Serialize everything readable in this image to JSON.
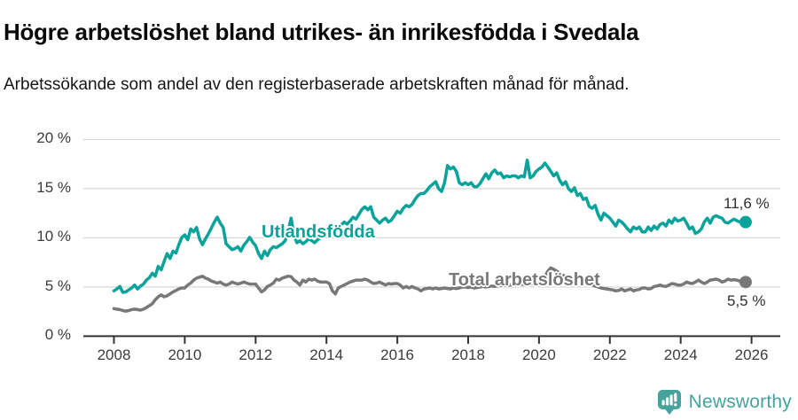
{
  "chart_data": {
    "type": "line",
    "title": "Högre arbetslöshet bland utrikes- än inrikesfödda i Svedala",
    "subtitle": "Arbetssökande som andel av den registerbaserade arbetskraften månad för månad.",
    "x_interval": "monthly",
    "x_start": "2008-01",
    "x_end": "2025-11",
    "x_tick_years": [
      2008,
      2010,
      2012,
      2014,
      2016,
      2018,
      2020,
      2022,
      2024,
      2026
    ],
    "y_tick_values": [
      0,
      5,
      10,
      15,
      20
    ],
    "y_tick_labels": [
      "0 %",
      "5 %",
      "10 %",
      "15 %",
      "20 %"
    ],
    "ylim": [
      0,
      20
    ],
    "grid": "horizontal",
    "legend_position": "inline-labels",
    "gridline_color": "#d9d9d9",
    "axis_color": "#333333",
    "series": [
      {
        "name": "Utlandsfödda",
        "color": "#09a39b",
        "end_label": "11,6 %",
        "end_value": 11.6,
        "values": [
          4.6,
          4.8,
          5.05,
          4.45,
          4.5,
          4.7,
          4.9,
          5.2,
          4.8,
          5.1,
          5.3,
          5.7,
          5.95,
          6.4,
          6.1,
          7.1,
          6.75,
          7.6,
          8.4,
          7.9,
          8.65,
          8.45,
          9.3,
          10.05,
          10.3,
          9.8,
          10.9,
          10.6,
          11.05,
          9.9,
          9.3,
          9.9,
          10.4,
          11.0,
          11.6,
          12.1,
          11.5,
          11.05,
          9.4,
          9.1,
          8.8,
          8.9,
          9.1,
          8.65,
          9.25,
          9.6,
          10.05,
          9.55,
          9.2,
          8.4,
          7.9,
          8.65,
          8.2,
          8.8,
          9.1,
          9.0,
          9.2,
          9.4,
          9.7,
          10.6,
          12.0,
          10.2,
          9.5,
          9.7,
          9.4,
          9.6,
          9.9,
          9.7,
          9.5,
          9.8,
          10.0,
          10.2,
          10.3,
          10.6,
          10.9,
          10.7,
          11.0,
          11.3,
          11.6,
          11.4,
          11.7,
          12.1,
          11.9,
          12.4,
          12.9,
          13.15,
          12.85,
          13.15,
          12.1,
          11.8,
          11.5,
          11.8,
          12.0,
          11.6,
          11.8,
          12.25,
          12.7,
          12.5,
          13.0,
          13.3,
          13.15,
          13.4,
          13.9,
          14.3,
          14.5,
          14.5,
          14.8,
          15.2,
          15.45,
          15.7,
          15.0,
          14.7,
          15.6,
          17.35,
          17.0,
          17.2,
          16.75,
          15.6,
          15.4,
          15.6,
          15.4,
          15.6,
          15.2,
          15.2,
          15.5,
          16.0,
          16.5,
          16.0,
          16.6,
          16.9,
          16.5,
          16.6,
          16.1,
          16.3,
          16.2,
          16.3,
          16.3,
          16.1,
          16.3,
          16.2,
          17.9,
          16.1,
          16.3,
          16.75,
          17.0,
          17.2,
          17.6,
          17.2,
          16.75,
          16.3,
          16.6,
          15.85,
          15.4,
          15.7,
          15.0,
          14.7,
          15.1,
          14.3,
          14.5,
          13.9,
          14.05,
          13.2,
          13.0,
          13.3,
          12.4,
          11.8,
          12.5,
          12.25,
          12.0,
          11.6,
          11.2,
          11.8,
          11.6,
          11.3,
          10.9,
          10.6,
          11.1,
          10.9,
          11.1,
          10.6,
          10.6,
          11.1,
          10.75,
          11.2,
          10.9,
          11.35,
          11.5,
          11.2,
          11.8,
          11.5,
          12.0,
          11.7,
          11.8,
          12.0,
          11.5,
          10.9,
          11.1,
          10.45,
          10.6,
          10.9,
          11.6,
          12.0,
          11.5,
          12.1,
          12.25,
          12.1,
          12.0,
          11.6,
          11.5,
          11.7,
          11.9,
          11.75,
          11.6,
          11.5,
          11.6
        ]
      },
      {
        "name": "Total arbetslöshet",
        "color": "#787878",
        "end_label": "5,5 %",
        "end_value": 5.5,
        "values": [
          2.8,
          2.75,
          2.7,
          2.6,
          2.55,
          2.6,
          2.7,
          2.75,
          2.7,
          2.65,
          2.75,
          2.9,
          3.1,
          3.3,
          3.7,
          4.0,
          4.2,
          4.0,
          4.1,
          4.3,
          4.5,
          4.65,
          4.8,
          4.9,
          4.9,
          5.2,
          5.4,
          5.7,
          5.9,
          6.0,
          6.1,
          5.9,
          5.8,
          5.6,
          5.5,
          5.4,
          5.5,
          5.3,
          5.2,
          5.3,
          5.5,
          5.4,
          5.3,
          5.4,
          5.5,
          5.4,
          5.3,
          5.3,
          5.3,
          4.9,
          4.5,
          4.7,
          5.05,
          5.2,
          5.4,
          5.8,
          5.7,
          5.9,
          6.0,
          6.1,
          6.05,
          5.7,
          5.5,
          5.2,
          5.7,
          5.5,
          5.8,
          5.7,
          5.8,
          5.6,
          5.5,
          5.5,
          5.5,
          5.35,
          4.6,
          4.3,
          4.9,
          5.05,
          5.2,
          5.35,
          5.5,
          5.6,
          5.7,
          5.7,
          5.7,
          5.8,
          5.7,
          5.5,
          5.35,
          5.4,
          5.5,
          5.35,
          5.2,
          5.35,
          5.3,
          5.35,
          5.35,
          5.2,
          4.9,
          5.05,
          4.9,
          5.05,
          4.9,
          4.8,
          4.6,
          4.8,
          4.85,
          4.9,
          4.8,
          4.9,
          4.8,
          4.85,
          4.9,
          4.85,
          4.8,
          4.9,
          4.85,
          4.9,
          5.0,
          5.0,
          4.95,
          5.0,
          4.9,
          4.95,
          5.0,
          5.05,
          5.0,
          5.05,
          5.1,
          5.05,
          5.1,
          5.15,
          5.2,
          5.15,
          5.2,
          5.25,
          5.2,
          5.25,
          5.3,
          5.25,
          5.3,
          5.3,
          5.35,
          5.3,
          5.4,
          5.6,
          6.1,
          6.6,
          6.95,
          6.8,
          6.6,
          6.4,
          6.2,
          6.1,
          6.0,
          5.9,
          5.8,
          5.7,
          5.6,
          5.5,
          5.4,
          5.3,
          5.2,
          5.1,
          5.0,
          4.9,
          4.85,
          4.8,
          4.75,
          4.7,
          4.6,
          4.65,
          4.8,
          4.6,
          4.7,
          4.8,
          4.6,
          4.7,
          4.75,
          4.9,
          4.9,
          4.8,
          4.85,
          5.05,
          5.1,
          5.2,
          5.1,
          5.05,
          5.2,
          5.35,
          5.3,
          5.2,
          5.2,
          5.3,
          5.5,
          5.4,
          5.35,
          5.5,
          5.7,
          5.5,
          5.35,
          5.5,
          5.7,
          5.75,
          5.8,
          5.7,
          5.5,
          5.6,
          5.8,
          5.7,
          5.75,
          5.7,
          5.6,
          5.5,
          5.5
        ]
      }
    ]
  },
  "footer": {
    "brand": "Newsworthy",
    "brand_color": "#45a39c"
  }
}
